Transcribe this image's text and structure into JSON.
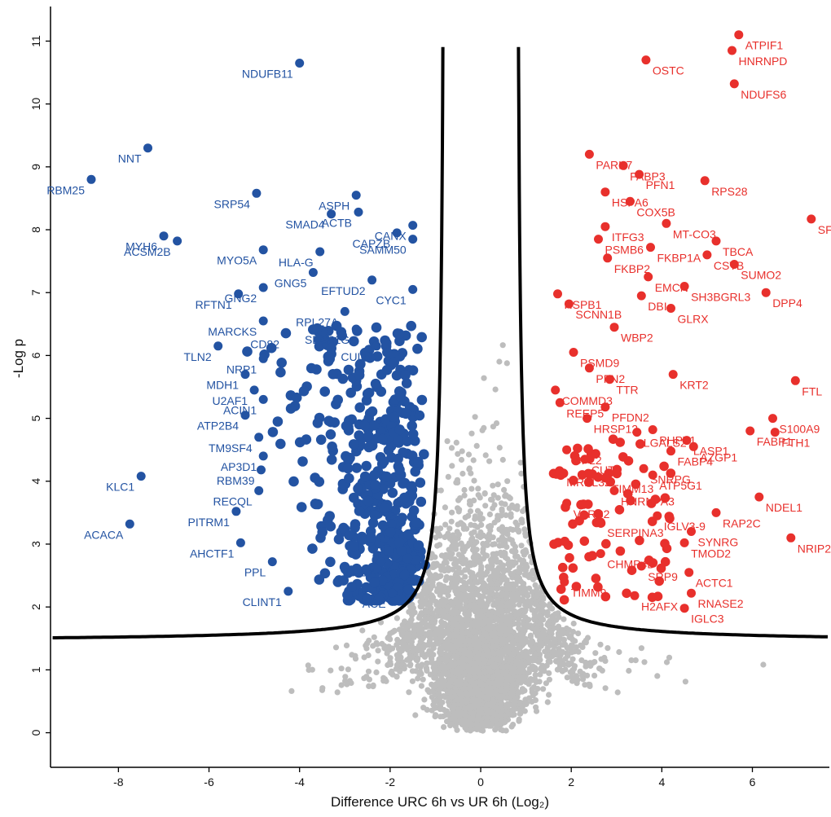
{
  "chart_data": {
    "type": "scatter",
    "title": "",
    "xlabel": "Difference URC 6h vs UR 6h (Log₂)",
    "ylabel": "-Log p",
    "xlim": [
      -9.5,
      7.7
    ],
    "ylim": [
      -0.55,
      11.55
    ],
    "xticks": [
      -8,
      -6,
      -4,
      -2,
      0,
      2,
      4,
      6
    ],
    "yticks": [
      0,
      1,
      2,
      3,
      4,
      5,
      6,
      7,
      8,
      9,
      10,
      11
    ],
    "colors": {
      "down": "#2353a2",
      "up": "#e8302c",
      "ns": "#bdbdbd",
      "curve": "#000000"
    },
    "threshold_curve": {
      "s0": 0.1,
      "fdr_ylevel": 1.45,
      "note_type": "hyperbolic significance cutoff"
    },
    "labeled_points": [
      {
        "gene": "NDUFB11",
        "x": -4.0,
        "y": 10.65,
        "dir": "down"
      },
      {
        "gene": "NNT",
        "x": -7.35,
        "y": 9.3,
        "dir": "down"
      },
      {
        "gene": "RBM25",
        "x": -8.6,
        "y": 8.8,
        "dir": "down"
      },
      {
        "gene": "SRP54",
        "x": -4.95,
        "y": 8.58,
        "dir": "down"
      },
      {
        "gene": "ASPH",
        "x": -2.75,
        "y": 8.55,
        "dir": "down"
      },
      {
        "gene": "SMAD4",
        "x": -3.3,
        "y": 8.25,
        "dir": "down"
      },
      {
        "gene": "ACTB",
        "x": -2.7,
        "y": 8.28,
        "dir": "down"
      },
      {
        "gene": "MYH6",
        "x": -7.0,
        "y": 7.9,
        "dir": "down"
      },
      {
        "gene": "ACSM2B",
        "x": -6.7,
        "y": 7.82,
        "dir": "down"
      },
      {
        "gene": "MYO5A",
        "x": -4.8,
        "y": 7.68,
        "dir": "down"
      },
      {
        "gene": "HLA-G",
        "x": -3.55,
        "y": 7.65,
        "dir": "down"
      },
      {
        "gene": "CAPZB",
        "x": -1.85,
        "y": 7.95,
        "dir": "down"
      },
      {
        "gene": "CANX",
        "x": -1.5,
        "y": 8.07,
        "dir": "down"
      },
      {
        "gene": "SAMM50",
        "x": -1.5,
        "y": 7.85,
        "dir": "down"
      },
      {
        "gene": "GNG5",
        "x": -3.7,
        "y": 7.32,
        "dir": "down"
      },
      {
        "gene": "GNG2",
        "x": -4.8,
        "y": 7.08,
        "dir": "down"
      },
      {
        "gene": "EFTUD2",
        "x": -2.4,
        "y": 7.2,
        "dir": "down"
      },
      {
        "gene": "CYC1",
        "x": -1.5,
        "y": 7.05,
        "dir": "down"
      },
      {
        "gene": "RFTN1",
        "x": -5.35,
        "y": 6.98,
        "dir": "down"
      },
      {
        "gene": "RPL27A",
        "x": -3.0,
        "y": 6.7,
        "dir": "down"
      },
      {
        "gene": "MARCKS",
        "x": -4.8,
        "y": 6.55,
        "dir": "down"
      },
      {
        "gene": "CD82",
        "x": -4.3,
        "y": 6.35,
        "dir": "down"
      },
      {
        "gene": "SEC61G",
        "x": -2.75,
        "y": 6.42,
        "dir": "down"
      },
      {
        "gene": "CUL5",
        "x": -2.3,
        "y": 6.15,
        "dir": "down"
      },
      {
        "gene": "TLN2",
        "x": -5.8,
        "y": 6.15,
        "dir": "down"
      },
      {
        "gene": "NRP1",
        "x": -4.8,
        "y": 5.95,
        "dir": "down"
      },
      {
        "gene": "MDH1",
        "x": -5.2,
        "y": 5.7,
        "dir": "down"
      },
      {
        "gene": "U2AF1",
        "x": -5.0,
        "y": 5.45,
        "dir": "down"
      },
      {
        "gene": "ACIN1",
        "x": -4.8,
        "y": 5.3,
        "dir": "down"
      },
      {
        "gene": "ATP2B4",
        "x": -5.2,
        "y": 5.05,
        "dir": "down"
      },
      {
        "gene": "TM9SF4",
        "x": -4.9,
        "y": 4.7,
        "dir": "down"
      },
      {
        "gene": "AP3D1",
        "x": -4.8,
        "y": 4.4,
        "dir": "down"
      },
      {
        "gene": "RBM39",
        "x": -4.85,
        "y": 4.18,
        "dir": "down"
      },
      {
        "gene": "KLC1",
        "x": -7.5,
        "y": 4.08,
        "dir": "down"
      },
      {
        "gene": "RECQL",
        "x": -4.9,
        "y": 3.85,
        "dir": "down"
      },
      {
        "gene": "PITRM1",
        "x": -5.4,
        "y": 3.52,
        "dir": "down"
      },
      {
        "gene": "ACACA",
        "x": -7.75,
        "y": 3.32,
        "dir": "down"
      },
      {
        "gene": "AHCTF1",
        "x": -5.3,
        "y": 3.02,
        "dir": "down"
      },
      {
        "gene": "PPL",
        "x": -4.6,
        "y": 2.72,
        "dir": "down"
      },
      {
        "gene": "ACE2",
        "x": -2.2,
        "y": 2.72,
        "dir": "down"
      },
      {
        "gene": "CLINT1",
        "x": -4.25,
        "y": 2.25,
        "dir": "down"
      },
      {
        "gene": "ACE",
        "x": -1.95,
        "y": 2.22,
        "dir": "down"
      },
      {
        "gene": "ATPIF1",
        "x": 5.7,
        "y": 11.1,
        "dir": "up"
      },
      {
        "gene": "HNRNPD",
        "x": 5.55,
        "y": 10.85,
        "dir": "up"
      },
      {
        "gene": "OSTC",
        "x": 3.65,
        "y": 10.7,
        "dir": "up"
      },
      {
        "gene": "NDUFS6",
        "x": 5.6,
        "y": 10.32,
        "dir": "up"
      },
      {
        "gene": "PARK7",
        "x": 2.4,
        "y": 9.2,
        "dir": "up"
      },
      {
        "gene": "FABP3",
        "x": 3.15,
        "y": 9.02,
        "dir": "up"
      },
      {
        "gene": "PFN1",
        "x": 3.5,
        "y": 8.88,
        "dir": "up"
      },
      {
        "gene": "RPS28",
        "x": 4.95,
        "y": 8.78,
        "dir": "up"
      },
      {
        "gene": "HSPA6",
        "x": 2.75,
        "y": 8.6,
        "dir": "up"
      },
      {
        "gene": "COX5B",
        "x": 3.3,
        "y": 8.45,
        "dir": "up"
      },
      {
        "gene": "SFN",
        "x": 7.3,
        "y": 8.17,
        "dir": "up"
      },
      {
        "gene": "ITFG3",
        "x": 2.75,
        "y": 8.05,
        "dir": "up"
      },
      {
        "gene": "MT-CO3",
        "x": 4.1,
        "y": 8.1,
        "dir": "up"
      },
      {
        "gene": "PSMB6",
        "x": 2.6,
        "y": 7.85,
        "dir": "up"
      },
      {
        "gene": "TBCA",
        "x": 5.2,
        "y": 7.82,
        "dir": "up"
      },
      {
        "gene": "FKBP1A",
        "x": 3.75,
        "y": 7.72,
        "dir": "up"
      },
      {
        "gene": "CSTB",
        "x": 5.0,
        "y": 7.6,
        "dir": "up"
      },
      {
        "gene": "FKBP2",
        "x": 2.8,
        "y": 7.55,
        "dir": "up"
      },
      {
        "gene": "SUMO2",
        "x": 5.6,
        "y": 7.45,
        "dir": "up"
      },
      {
        "gene": "EMCN",
        "x": 3.7,
        "y": 7.25,
        "dir": "up"
      },
      {
        "gene": "HSPB1",
        "x": 1.7,
        "y": 6.98,
        "dir": "up"
      },
      {
        "gene": "SH3BGRL3",
        "x": 4.5,
        "y": 7.1,
        "dir": "up"
      },
      {
        "gene": "DPP4",
        "x": 6.3,
        "y": 7.0,
        "dir": "up"
      },
      {
        "gene": "DBI",
        "x": 3.55,
        "y": 6.95,
        "dir": "up"
      },
      {
        "gene": "SCNN1B",
        "x": 1.95,
        "y": 6.82,
        "dir": "up"
      },
      {
        "gene": "GLRX",
        "x": 4.2,
        "y": 6.75,
        "dir": "up"
      },
      {
        "gene": "WBP2",
        "x": 2.95,
        "y": 6.45,
        "dir": "up"
      },
      {
        "gene": "PSMD9",
        "x": 2.05,
        "y": 6.05,
        "dir": "up"
      },
      {
        "gene": "PFN2",
        "x": 2.4,
        "y": 5.8,
        "dir": "up"
      },
      {
        "gene": "KRT2",
        "x": 4.25,
        "y": 5.7,
        "dir": "up"
      },
      {
        "gene": "FTL",
        "x": 6.95,
        "y": 5.6,
        "dir": "up"
      },
      {
        "gene": "TTR",
        "x": 2.85,
        "y": 5.62,
        "dir": "up"
      },
      {
        "gene": "COMMD3",
        "x": 1.65,
        "y": 5.45,
        "dir": "up"
      },
      {
        "gene": "REEP5",
        "x": 1.75,
        "y": 5.25,
        "dir": "up"
      },
      {
        "gene": "PFDN2",
        "x": 2.75,
        "y": 5.18,
        "dir": "up"
      },
      {
        "gene": "HRSP12",
        "x": 2.35,
        "y": 5.0,
        "dir": "up"
      },
      {
        "gene": "S100A9",
        "x": 6.45,
        "y": 5.0,
        "dir": "up"
      },
      {
        "gene": "PHPT1",
        "x": 3.8,
        "y": 4.82,
        "dir": "up"
      },
      {
        "gene": "FABP1",
        "x": 5.95,
        "y": 4.8,
        "dir": "up"
      },
      {
        "gene": "LGALS2",
        "x": 3.45,
        "y": 4.78,
        "dir": "up"
      },
      {
        "gene": "FTH1",
        "x": 6.5,
        "y": 4.78,
        "dir": "up"
      },
      {
        "gene": "LASP1",
        "x": 4.55,
        "y": 4.65,
        "dir": "up"
      },
      {
        "gene": "CPL2",
        "x": 1.9,
        "y": 4.5,
        "dir": "up"
      },
      {
        "gene": "CUTA",
        "x": 2.3,
        "y": 4.35,
        "dir": "up"
      },
      {
        "gene": "AZGP1",
        "x": 4.7,
        "y": 4.55,
        "dir": "up"
      },
      {
        "gene": "FABP4",
        "x": 4.2,
        "y": 4.48,
        "dir": "up"
      },
      {
        "gene": "MRPL32",
        "x": 1.75,
        "y": 4.15,
        "dir": "up"
      },
      {
        "gene": "SNRPG",
        "x": 3.6,
        "y": 4.2,
        "dir": "up"
      },
      {
        "gene": "TIMM13",
        "x": 2.75,
        "y": 4.05,
        "dir": "up"
      },
      {
        "gene": "ATP5G1",
        "x": 3.8,
        "y": 4.1,
        "dir": "up"
      },
      {
        "gene": "NDEL1",
        "x": 6.15,
        "y": 3.75,
        "dir": "up"
      },
      {
        "gene": "HNRNPA3",
        "x": 2.95,
        "y": 3.85,
        "dir": "up"
      },
      {
        "gene": "VARS2",
        "x": 1.9,
        "y": 3.65,
        "dir": "up"
      },
      {
        "gene": "IGLV3-9",
        "x": 3.9,
        "y": 3.45,
        "dir": "up"
      },
      {
        "gene": "RAP2C",
        "x": 5.2,
        "y": 3.5,
        "dir": "up"
      },
      {
        "gene": "SERPINA3",
        "x": 2.65,
        "y": 3.35,
        "dir": "up"
      },
      {
        "gene": "SYNRG",
        "x": 4.65,
        "y": 3.2,
        "dir": "up"
      },
      {
        "gene": "NRIP2",
        "x": 6.85,
        "y": 3.1,
        "dir": "up"
      },
      {
        "gene": "CHMP4B",
        "x": 2.65,
        "y": 2.85,
        "dir": "up"
      },
      {
        "gene": "TMOD2",
        "x": 4.5,
        "y": 3.02,
        "dir": "up"
      },
      {
        "gene": "SRP9",
        "x": 3.55,
        "y": 2.65,
        "dir": "up"
      },
      {
        "gene": "ACTC1",
        "x": 4.6,
        "y": 2.55,
        "dir": "up"
      },
      {
        "gene": "TIMM9",
        "x": 1.85,
        "y": 2.4,
        "dir": "up"
      },
      {
        "gene": "RNASE2",
        "x": 4.65,
        "y": 2.22,
        "dir": "up"
      },
      {
        "gene": "H2AFX",
        "x": 3.4,
        "y": 2.18,
        "dir": "up"
      },
      {
        "gene": "IGLC3",
        "x": 4.5,
        "y": 1.98,
        "dir": "up"
      }
    ],
    "background_points": {
      "down_count": 560,
      "up_count": 80,
      "ns_count": 3600,
      "seed": 7,
      "description": "unlabeled significant and non-significant protein points"
    }
  }
}
